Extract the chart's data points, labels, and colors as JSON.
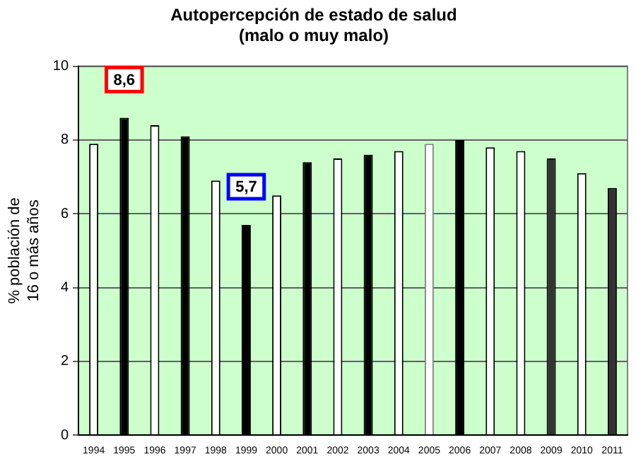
{
  "chart_data": {
    "type": "bar",
    "title": "Autopercepción de estado de salud\n(malo o muy malo)",
    "ylabel": "% población de\n16 o más años",
    "categories": [
      "1994",
      "1995",
      "1996",
      "1997",
      "1998",
      "1999",
      "2000",
      "2001",
      "2002",
      "2003",
      "2004",
      "2005",
      "2006",
      "2007",
      "2008",
      "2009",
      "2010",
      "2011"
    ],
    "values": [
      7.9,
      8.6,
      8.4,
      8.1,
      6.9,
      5.7,
      6.5,
      7.4,
      7.5,
      7.6,
      7.7,
      7.9,
      8.0,
      7.8,
      7.7,
      7.5,
      7.1,
      6.7
    ],
    "colors": [
      "#ffffff",
      "#000000",
      "#ffffff",
      "#000000",
      "#ffffff",
      "#000000",
      "#ffffff",
      "#000000",
      "#ffffff",
      "#000000",
      "#ffffff",
      "#ffffff",
      "#000000",
      "#ffffff",
      "#ffffff",
      "#333333",
      "#ffffff",
      "#333333"
    ],
    "ylim": [
      0,
      10
    ],
    "yticks": [
      0,
      2,
      4,
      6,
      8,
      10
    ],
    "grid": "y",
    "legend": false,
    "annotations": [
      {
        "text": "8,6",
        "x": "1995",
        "y": 8.6
      },
      {
        "text": "5,7",
        "x": "1999",
        "y": 5.7
      }
    ]
  }
}
